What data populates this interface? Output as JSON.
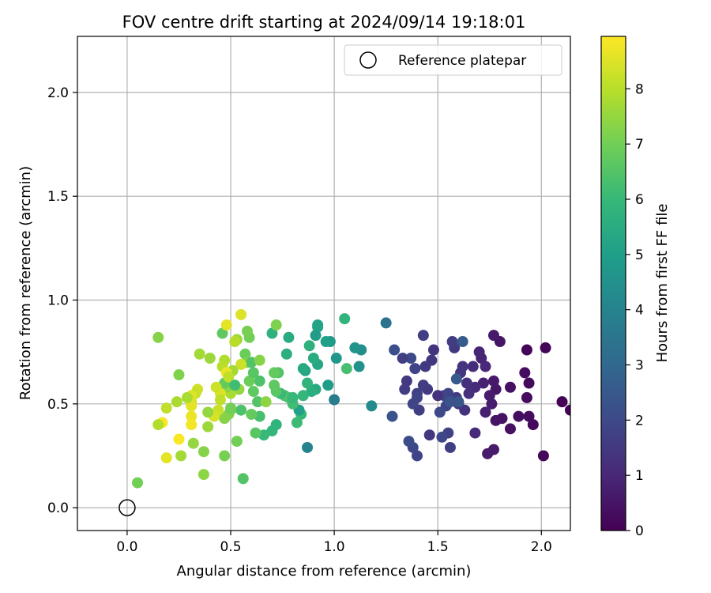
{
  "chart_data": {
    "type": "scatter",
    "title": "FOV centre drift starting at 2024/09/14 19:18:01",
    "xlabel": "Angular distance from reference (arcmin)",
    "ylabel": "Rotation from reference (arcmin)",
    "xlim": [
      -0.24,
      2.14
    ],
    "ylim": [
      -0.11,
      2.27
    ],
    "xticks": [
      0.0,
      0.5,
      1.0,
      1.5,
      2.0
    ],
    "xtick_labels": [
      "0.0",
      "0.5",
      "1.0",
      "1.5",
      "2.0"
    ],
    "yticks": [
      0.0,
      0.5,
      1.0,
      1.5,
      2.0
    ],
    "ytick_labels": [
      "0.0",
      "0.5",
      "1.0",
      "1.5",
      "2.0"
    ],
    "grid": true,
    "legend": {
      "placement": "top-right",
      "entries": [
        "Reference platepar"
      ]
    },
    "colorbar": {
      "label": "Hours from first FF file",
      "range": [
        0,
        8.95
      ],
      "ticks": [
        0,
        1,
        2,
        3,
        4,
        5,
        6,
        7,
        8
      ],
      "tick_labels": [
        "0",
        "1",
        "2",
        "3",
        "4",
        "5",
        "6",
        "7",
        "8"
      ],
      "colormap": "viridis",
      "colormap_stops": [
        "#440154",
        "#482878",
        "#3e4989",
        "#31688e",
        "#26828e",
        "#1f9e89",
        "#35b779",
        "#6ece58",
        "#b5de2b",
        "#fde725"
      ]
    },
    "reference_point": {
      "name": "Reference platepar",
      "x": 0.0,
      "y": 0.0
    },
    "series": [
      {
        "name": "",
        "points": [
          {
            "x": 2.1,
            "y": 0.51,
            "h": 0.05
          },
          {
            "x": 2.14,
            "y": 0.47,
            "h": 0.1
          },
          {
            "x": 2.02,
            "y": 0.77,
            "h": 0.1
          },
          {
            "x": 2.01,
            "y": 0.25,
            "h": 0.15
          },
          {
            "x": 1.96,
            "y": 0.4,
            "h": 0.2
          },
          {
            "x": 1.94,
            "y": 0.6,
            "h": 0.2
          },
          {
            "x": 1.93,
            "y": 0.53,
            "h": 0.25
          },
          {
            "x": 1.94,
            "y": 0.44,
            "h": 0.3
          },
          {
            "x": 1.92,
            "y": 0.65,
            "h": 0.3
          },
          {
            "x": 1.93,
            "y": 0.76,
            "h": 0.1
          },
          {
            "x": 1.89,
            "y": 0.44,
            "h": 0.35
          },
          {
            "x": 1.85,
            "y": 0.38,
            "h": 0.4
          },
          {
            "x": 1.85,
            "y": 0.58,
            "h": 0.4
          },
          {
            "x": 1.81,
            "y": 0.43,
            "h": 0.45
          },
          {
            "x": 1.8,
            "y": 0.8,
            "h": 0.5
          },
          {
            "x": 1.78,
            "y": 0.42,
            "h": 0.5
          },
          {
            "x": 1.78,
            "y": 0.57,
            "h": 0.55
          },
          {
            "x": 1.77,
            "y": 0.61,
            "h": 0.6
          },
          {
            "x": 1.77,
            "y": 0.83,
            "h": 0.6
          },
          {
            "x": 1.77,
            "y": 0.28,
            "h": 0.65
          },
          {
            "x": 1.74,
            "y": 0.26,
            "h": 0.7
          },
          {
            "x": 1.75,
            "y": 0.54,
            "h": 0.7
          },
          {
            "x": 1.76,
            "y": 0.5,
            "h": 0.75
          },
          {
            "x": 1.73,
            "y": 0.46,
            "h": 0.8
          },
          {
            "x": 1.72,
            "y": 0.6,
            "h": 0.85
          },
          {
            "x": 1.71,
            "y": 0.72,
            "h": 0.9
          },
          {
            "x": 1.7,
            "y": 0.75,
            "h": 0.95
          },
          {
            "x": 1.73,
            "y": 0.68,
            "h": 1.0
          },
          {
            "x": 1.68,
            "y": 0.36,
            "h": 1.05
          },
          {
            "x": 1.68,
            "y": 0.58,
            "h": 1.1
          },
          {
            "x": 1.67,
            "y": 0.68,
            "h": 1.15
          },
          {
            "x": 1.65,
            "y": 0.55,
            "h": 1.2
          },
          {
            "x": 1.64,
            "y": 0.6,
            "h": 1.25
          },
          {
            "x": 1.63,
            "y": 0.47,
            "h": 1.3
          },
          {
            "x": 1.62,
            "y": 0.68,
            "h": 1.35
          },
          {
            "x": 1.61,
            "y": 0.65,
            "h": 1.4
          },
          {
            "x": 1.6,
            "y": 0.5,
            "h": 1.45
          },
          {
            "x": 1.59,
            "y": 0.53,
            "h": 1.5
          },
          {
            "x": 1.58,
            "y": 0.77,
            "h": 1.55
          },
          {
            "x": 1.57,
            "y": 0.8,
            "h": 1.6
          },
          {
            "x": 1.57,
            "y": 0.52,
            "h": 1.65
          },
          {
            "x": 1.56,
            "y": 0.29,
            "h": 1.7
          },
          {
            "x": 1.55,
            "y": 0.36,
            "h": 1.75
          },
          {
            "x": 1.55,
            "y": 0.55,
            "h": 1.8
          },
          {
            "x": 1.54,
            "y": 0.49,
            "h": 1.85
          },
          {
            "x": 1.53,
            "y": 0.54,
            "h": 1.9
          },
          {
            "x": 1.52,
            "y": 0.34,
            "h": 1.95
          },
          {
            "x": 1.51,
            "y": 0.46,
            "h": 2.0
          },
          {
            "x": 1.5,
            "y": 0.54,
            "h": 1.3
          },
          {
            "x": 1.48,
            "y": 0.76,
            "h": 1.35
          },
          {
            "x": 1.47,
            "y": 0.71,
            "h": 1.4
          },
          {
            "x": 1.46,
            "y": 0.35,
            "h": 1.45
          },
          {
            "x": 1.45,
            "y": 0.57,
            "h": 1.5
          },
          {
            "x": 1.44,
            "y": 0.68,
            "h": 1.55
          },
          {
            "x": 1.43,
            "y": 0.59,
            "h": 1.6
          },
          {
            "x": 1.43,
            "y": 0.83,
            "h": 1.65
          },
          {
            "x": 1.41,
            "y": 0.47,
            "h": 1.7
          },
          {
            "x": 1.4,
            "y": 0.55,
            "h": 1.75
          },
          {
            "x": 1.4,
            "y": 0.25,
            "h": 1.8
          },
          {
            "x": 1.39,
            "y": 0.67,
            "h": 1.85
          },
          {
            "x": 1.38,
            "y": 0.5,
            "h": 1.9
          },
          {
            "x": 1.38,
            "y": 0.29,
            "h": 1.95
          },
          {
            "x": 1.37,
            "y": 0.72,
            "h": 2.0
          },
          {
            "x": 1.36,
            "y": 0.32,
            "h": 2.05
          },
          {
            "x": 1.35,
            "y": 0.61,
            "h": 1.5
          },
          {
            "x": 1.34,
            "y": 0.57,
            "h": 1.6
          },
          {
            "x": 1.33,
            "y": 0.72,
            "h": 1.7
          },
          {
            "x": 1.29,
            "y": 0.76,
            "h": 2.2
          },
          {
            "x": 1.28,
            "y": 0.44,
            "h": 2.3
          },
          {
            "x": 1.25,
            "y": 0.89,
            "h": 3.4
          },
          {
            "x": 1.6,
            "y": 0.51,
            "h": 2.4
          },
          {
            "x": 1.62,
            "y": 0.8,
            "h": 2.6
          },
          {
            "x": 1.59,
            "y": 0.62,
            "h": 2.5
          },
          {
            "x": 1.56,
            "y": 0.51,
            "h": 2.3
          },
          {
            "x": 1.4,
            "y": 0.53,
            "h": 1.8
          },
          {
            "x": 1.18,
            "y": 0.49,
            "h": 4.3
          },
          {
            "x": 1.13,
            "y": 0.76,
            "h": 4.4
          },
          {
            "x": 1.12,
            "y": 0.68,
            "h": 4.5
          },
          {
            "x": 1.1,
            "y": 0.77,
            "h": 4.6
          },
          {
            "x": 1.05,
            "y": 0.91,
            "h": 5.8
          },
          {
            "x": 1.06,
            "y": 0.67,
            "h": 6.3
          },
          {
            "x": 1.01,
            "y": 0.72,
            "h": 4.7
          },
          {
            "x": 1.0,
            "y": 0.52,
            "h": 3.7
          },
          {
            "x": 0.98,
            "y": 0.8,
            "h": 4.8
          },
          {
            "x": 0.97,
            "y": 0.59,
            "h": 4.9
          },
          {
            "x": 0.96,
            "y": 0.8,
            "h": 5.0
          },
          {
            "x": 0.92,
            "y": 0.88,
            "h": 5.1
          },
          {
            "x": 0.92,
            "y": 0.87,
            "h": 5.2
          },
          {
            "x": 0.91,
            "y": 0.83,
            "h": 4.9
          },
          {
            "x": 0.92,
            "y": 0.69,
            "h": 5.3
          },
          {
            "x": 0.91,
            "y": 0.57,
            "h": 5.4
          },
          {
            "x": 0.9,
            "y": 0.72,
            "h": 5.5
          },
          {
            "x": 0.89,
            "y": 0.56,
            "h": 5.6
          },
          {
            "x": 0.88,
            "y": 0.78,
            "h": 5.7
          },
          {
            "x": 0.87,
            "y": 0.6,
            "h": 5.8
          },
          {
            "x": 0.86,
            "y": 0.66,
            "h": 5.2
          },
          {
            "x": 0.85,
            "y": 0.67,
            "h": 5.4
          },
          {
            "x": 0.85,
            "y": 0.54,
            "h": 5.9
          },
          {
            "x": 0.84,
            "y": 0.45,
            "h": 6.0
          },
          {
            "x": 0.87,
            "y": 0.29,
            "h": 4.0
          },
          {
            "x": 0.83,
            "y": 0.47,
            "h": 5.1
          },
          {
            "x": 0.82,
            "y": 0.41,
            "h": 6.1
          },
          {
            "x": 0.8,
            "y": 0.5,
            "h": 6.2
          },
          {
            "x": 0.78,
            "y": 0.53,
            "h": 6.3
          },
          {
            "x": 0.76,
            "y": 0.54,
            "h": 6.4
          },
          {
            "x": 0.74,
            "y": 0.55,
            "h": 6.0
          },
          {
            "x": 0.73,
            "y": 0.65,
            "h": 6.5
          },
          {
            "x": 0.72,
            "y": 0.56,
            "h": 6.6
          },
          {
            "x": 0.71,
            "y": 0.59,
            "h": 6.7
          },
          {
            "x": 0.7,
            "y": 0.37,
            "h": 5.9
          },
          {
            "x": 0.72,
            "y": 0.4,
            "h": 5.8
          },
          {
            "x": 0.71,
            "y": 0.65,
            "h": 6.8
          },
          {
            "x": 0.7,
            "y": 0.84,
            "h": 5.7
          },
          {
            "x": 0.77,
            "y": 0.74,
            "h": 5.6
          },
          {
            "x": 0.78,
            "y": 0.82,
            "h": 5.5
          },
          {
            "x": 0.72,
            "y": 0.88,
            "h": 7.2
          },
          {
            "x": 0.66,
            "y": 0.35,
            "h": 6.0
          },
          {
            "x": 0.64,
            "y": 0.44,
            "h": 6.3
          },
          {
            "x": 0.64,
            "y": 0.61,
            "h": 6.4
          },
          {
            "x": 0.63,
            "y": 0.51,
            "h": 6.5
          },
          {
            "x": 0.62,
            "y": 0.36,
            "h": 6.6
          },
          {
            "x": 0.61,
            "y": 0.56,
            "h": 6.7
          },
          {
            "x": 0.6,
            "y": 0.45,
            "h": 6.8
          },
          {
            "x": 0.59,
            "y": 0.61,
            "h": 6.9
          },
          {
            "x": 0.59,
            "y": 0.82,
            "h": 7.0
          },
          {
            "x": 0.58,
            "y": 0.85,
            "h": 7.1
          },
          {
            "x": 0.57,
            "y": 0.74,
            "h": 6.9
          },
          {
            "x": 0.58,
            "y": 0.7,
            "h": 7.2
          },
          {
            "x": 0.6,
            "y": 0.7,
            "h": 6.5
          },
          {
            "x": 0.64,
            "y": 0.71,
            "h": 7.3
          },
          {
            "x": 0.67,
            "y": 0.51,
            "h": 7.4
          },
          {
            "x": 0.56,
            "y": 0.14,
            "h": 6.5
          },
          {
            "x": 0.55,
            "y": 0.93,
            "h": 8.5
          },
          {
            "x": 0.55,
            "y": 0.69,
            "h": 8.3
          },
          {
            "x": 0.54,
            "y": 0.57,
            "h": 7.5
          },
          {
            "x": 0.53,
            "y": 0.32,
            "h": 7.0
          },
          {
            "x": 0.53,
            "y": 0.81,
            "h": 7.6
          },
          {
            "x": 0.52,
            "y": 0.8,
            "h": 8.0
          },
          {
            "x": 0.51,
            "y": 0.66,
            "h": 7.7
          },
          {
            "x": 0.5,
            "y": 0.55,
            "h": 7.8
          },
          {
            "x": 0.5,
            "y": 0.47,
            "h": 7.0
          },
          {
            "x": 0.49,
            "y": 0.45,
            "h": 7.2
          },
          {
            "x": 0.48,
            "y": 0.58,
            "h": 7.4
          },
          {
            "x": 0.47,
            "y": 0.6,
            "h": 6.8
          },
          {
            "x": 0.47,
            "y": 0.25,
            "h": 7.1
          },
          {
            "x": 0.47,
            "y": 0.71,
            "h": 7.9
          },
          {
            "x": 0.46,
            "y": 0.68,
            "h": 8.0
          },
          {
            "x": 0.46,
            "y": 0.84,
            "h": 6.7
          },
          {
            "x": 0.47,
            "y": 0.43,
            "h": 7.3
          },
          {
            "x": 0.45,
            "y": 0.55,
            "h": 8.5
          },
          {
            "x": 0.45,
            "y": 0.52,
            "h": 8.1
          },
          {
            "x": 0.44,
            "y": 0.47,
            "h": 8.2
          },
          {
            "x": 0.43,
            "y": 0.58,
            "h": 8.3
          },
          {
            "x": 0.42,
            "y": 0.44,
            "h": 8.4
          },
          {
            "x": 0.48,
            "y": 0.88,
            "h": 8.6
          },
          {
            "x": 0.48,
            "y": 0.65,
            "h": 8.7
          },
          {
            "x": 0.49,
            "y": 0.63,
            "h": 8.1
          },
          {
            "x": 0.4,
            "y": 0.72,
            "h": 7.6
          },
          {
            "x": 0.39,
            "y": 0.46,
            "h": 7.5
          },
          {
            "x": 0.39,
            "y": 0.39,
            "h": 7.6
          },
          {
            "x": 0.37,
            "y": 0.27,
            "h": 7.3
          },
          {
            "x": 0.37,
            "y": 0.16,
            "h": 7.4
          },
          {
            "x": 0.35,
            "y": 0.74,
            "h": 7.7
          },
          {
            "x": 0.34,
            "y": 0.57,
            "h": 8.3
          },
          {
            "x": 0.33,
            "y": 0.55,
            "h": 8.2
          },
          {
            "x": 0.32,
            "y": 0.31,
            "h": 7.5
          },
          {
            "x": 0.31,
            "y": 0.51,
            "h": 8.4
          },
          {
            "x": 0.31,
            "y": 0.54,
            "h": 8.5
          },
          {
            "x": 0.31,
            "y": 0.49,
            "h": 8.6
          },
          {
            "x": 0.31,
            "y": 0.44,
            "h": 8.7
          },
          {
            "x": 0.31,
            "y": 0.4,
            "h": 8.8
          },
          {
            "x": 0.29,
            "y": 0.53,
            "h": 7.8
          },
          {
            "x": 0.26,
            "y": 0.25,
            "h": 7.7
          },
          {
            "x": 0.25,
            "y": 0.64,
            "h": 7.2
          },
          {
            "x": 0.25,
            "y": 0.33,
            "h": 8.9
          },
          {
            "x": 0.24,
            "y": 0.51,
            "h": 7.8
          },
          {
            "x": 0.19,
            "y": 0.24,
            "h": 8.6
          },
          {
            "x": 0.19,
            "y": 0.48,
            "h": 8.1
          },
          {
            "x": 0.17,
            "y": 0.41,
            "h": 8.9
          },
          {
            "x": 0.15,
            "y": 0.82,
            "h": 7.3
          },
          {
            "x": 0.15,
            "y": 0.4,
            "h": 7.9
          },
          {
            "x": 0.05,
            "y": 0.12,
            "h": 7.0
          },
          {
            "x": 0.8,
            "y": 0.53,
            "h": 6.0
          },
          {
            "x": 0.55,
            "y": 0.47,
            "h": 6.4
          },
          {
            "x": 0.52,
            "y": 0.59,
            "h": 6.2
          },
          {
            "x": 0.5,
            "y": 0.48,
            "h": 7.0
          },
          {
            "x": 0.61,
            "y": 0.65,
            "h": 6.6
          }
        ]
      }
    ]
  }
}
